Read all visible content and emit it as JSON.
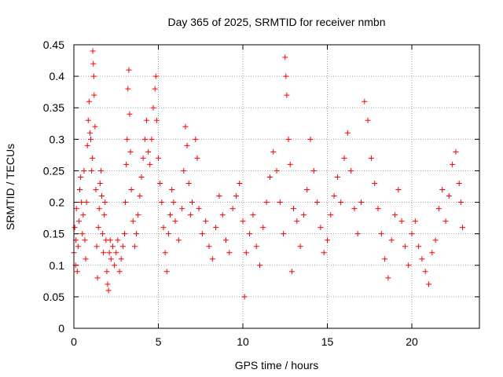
{
  "chart_data": {
    "type": "scatter",
    "title": "Day 365 of 2025, SRMTID for receiver nmbn",
    "xlabel": "GPS time / hours",
    "ylabel": "SRMTID / TECUs",
    "xlim": [
      0,
      24
    ],
    "ylim": [
      0,
      0.45
    ],
    "xticks": [
      0,
      5,
      10,
      15,
      20
    ],
    "xtick_labels": [
      "0",
      "5",
      "10",
      "15",
      "20"
    ],
    "yticks": [
      0,
      0.05,
      0.1,
      0.15,
      0.2,
      0.25,
      0.3,
      0.35,
      0.4,
      0.45
    ],
    "ytick_labels": [
      "0",
      "0.05",
      "0.1",
      "0.15",
      "0.2",
      "0.25",
      "0.3",
      "0.35",
      "0.4",
      "0.45"
    ],
    "grid": true,
    "marker": "plus",
    "color": "#ff0000",
    "series": [
      {
        "name": "SRMTID",
        "points": [
          [
            0.0,
            0.12
          ],
          [
            0.05,
            0.16
          ],
          [
            0.1,
            0.1
          ],
          [
            0.12,
            0.14
          ],
          [
            0.15,
            0.19
          ],
          [
            0.2,
            0.09
          ],
          [
            0.25,
            0.13
          ],
          [
            0.3,
            0.17
          ],
          [
            0.35,
            0.22
          ],
          [
            0.4,
            0.24
          ],
          [
            0.45,
            0.2
          ],
          [
            0.5,
            0.15
          ],
          [
            0.55,
            0.18
          ],
          [
            0.6,
            0.25
          ],
          [
            0.65,
            0.14
          ],
          [
            0.7,
            0.11
          ],
          [
            0.75,
            0.2
          ],
          [
            0.8,
            0.29
          ],
          [
            0.85,
            0.33
          ],
          [
            0.9,
            0.36
          ],
          [
            0.95,
            0.31
          ],
          [
            1.0,
            0.3
          ],
          [
            1.05,
            0.25
          ],
          [
            1.1,
            0.27
          ],
          [
            1.12,
            0.44
          ],
          [
            1.15,
            0.42
          ],
          [
            1.18,
            0.4
          ],
          [
            1.2,
            0.37
          ],
          [
            1.25,
            0.32
          ],
          [
            1.3,
            0.22
          ],
          [
            1.35,
            0.13
          ],
          [
            1.4,
            0.08
          ],
          [
            1.45,
            0.16
          ],
          [
            1.5,
            0.19
          ],
          [
            1.55,
            0.23
          ],
          [
            1.6,
            0.25
          ],
          [
            1.65,
            0.21
          ],
          [
            1.7,
            0.15
          ],
          [
            1.75,
            0.12
          ],
          [
            1.8,
            0.18
          ],
          [
            1.85,
            0.2
          ],
          [
            1.9,
            0.14
          ],
          [
            1.95,
            0.09
          ],
          [
            2.0,
            0.07
          ],
          [
            2.05,
            0.06
          ],
          [
            2.1,
            0.12
          ],
          [
            2.15,
            0.14
          ],
          [
            2.2,
            0.11
          ],
          [
            2.3,
            0.13
          ],
          [
            2.4,
            0.1
          ],
          [
            2.5,
            0.12
          ],
          [
            2.6,
            0.14
          ],
          [
            2.7,
            0.09
          ],
          [
            2.8,
            0.11
          ],
          [
            2.9,
            0.13
          ],
          [
            3.0,
            0.15
          ],
          [
            3.05,
            0.2
          ],
          [
            3.1,
            0.26
          ],
          [
            3.15,
            0.3
          ],
          [
            3.2,
            0.38
          ],
          [
            3.25,
            0.41
          ],
          [
            3.3,
            0.34
          ],
          [
            3.35,
            0.28
          ],
          [
            3.4,
            0.22
          ],
          [
            3.5,
            0.17
          ],
          [
            3.6,
            0.13
          ],
          [
            3.7,
            0.15
          ],
          [
            3.8,
            0.18
          ],
          [
            3.9,
            0.21
          ],
          [
            4.0,
            0.24
          ],
          [
            4.1,
            0.27
          ],
          [
            4.2,
            0.3
          ],
          [
            4.3,
            0.33
          ],
          [
            4.4,
            0.28
          ],
          [
            4.5,
            0.26
          ],
          [
            4.6,
            0.3
          ],
          [
            4.7,
            0.35
          ],
          [
            4.8,
            0.38
          ],
          [
            4.85,
            0.4
          ],
          [
            4.9,
            0.33
          ],
          [
            5.0,
            0.27
          ],
          [
            5.1,
            0.23
          ],
          [
            5.2,
            0.2
          ],
          [
            5.3,
            0.16
          ],
          [
            5.4,
            0.12
          ],
          [
            5.5,
            0.09
          ],
          [
            5.6,
            0.15
          ],
          [
            5.7,
            0.18
          ],
          [
            5.8,
            0.22
          ],
          [
            5.9,
            0.2
          ],
          [
            6.0,
            0.17
          ],
          [
            6.2,
            0.14
          ],
          [
            6.4,
            0.19
          ],
          [
            6.5,
            0.25
          ],
          [
            6.6,
            0.32
          ],
          [
            6.7,
            0.29
          ],
          [
            6.8,
            0.23
          ],
          [
            6.9,
            0.18
          ],
          [
            7.0,
            0.2
          ],
          [
            7.2,
            0.3
          ],
          [
            7.3,
            0.27
          ],
          [
            7.4,
            0.19
          ],
          [
            7.6,
            0.15
          ],
          [
            7.8,
            0.17
          ],
          [
            8.0,
            0.13
          ],
          [
            8.2,
            0.11
          ],
          [
            8.4,
            0.16
          ],
          [
            8.6,
            0.21
          ],
          [
            8.8,
            0.18
          ],
          [
            9.0,
            0.14
          ],
          [
            9.2,
            0.12
          ],
          [
            9.4,
            0.19
          ],
          [
            9.6,
            0.21
          ],
          [
            9.8,
            0.23
          ],
          [
            10.0,
            0.17
          ],
          [
            10.1,
            0.05
          ],
          [
            10.2,
            0.12
          ],
          [
            10.4,
            0.15
          ],
          [
            10.6,
            0.18
          ],
          [
            10.8,
            0.13
          ],
          [
            11.0,
            0.1
          ],
          [
            11.2,
            0.16
          ],
          [
            11.4,
            0.2
          ],
          [
            11.6,
            0.24
          ],
          [
            11.8,
            0.28
          ],
          [
            12.0,
            0.25
          ],
          [
            12.2,
            0.2
          ],
          [
            12.4,
            0.15
          ],
          [
            12.5,
            0.43
          ],
          [
            12.55,
            0.4
          ],
          [
            12.6,
            0.37
          ],
          [
            12.7,
            0.3
          ],
          [
            12.8,
            0.26
          ],
          [
            12.9,
            0.09
          ],
          [
            13.0,
            0.19
          ],
          [
            13.2,
            0.17
          ],
          [
            13.4,
            0.13
          ],
          [
            13.6,
            0.18
          ],
          [
            13.8,
            0.22
          ],
          [
            14.0,
            0.3
          ],
          [
            14.2,
            0.25
          ],
          [
            14.4,
            0.2
          ],
          [
            14.6,
            0.16
          ],
          [
            14.8,
            0.12
          ],
          [
            15.0,
            0.14
          ],
          [
            15.2,
            0.18
          ],
          [
            15.4,
            0.21
          ],
          [
            15.6,
            0.24
          ],
          [
            15.8,
            0.2
          ],
          [
            16.0,
            0.27
          ],
          [
            16.2,
            0.31
          ],
          [
            16.4,
            0.25
          ],
          [
            16.6,
            0.19
          ],
          [
            16.8,
            0.15
          ],
          [
            17.0,
            0.2
          ],
          [
            17.2,
            0.36
          ],
          [
            17.4,
            0.33
          ],
          [
            17.6,
            0.27
          ],
          [
            17.8,
            0.23
          ],
          [
            18.0,
            0.19
          ],
          [
            18.2,
            0.15
          ],
          [
            18.4,
            0.11
          ],
          [
            18.6,
            0.08
          ],
          [
            18.8,
            0.14
          ],
          [
            19.0,
            0.18
          ],
          [
            19.2,
            0.22
          ],
          [
            19.4,
            0.17
          ],
          [
            19.6,
            0.13
          ],
          [
            19.8,
            0.1
          ],
          [
            20.0,
            0.15
          ],
          [
            20.2,
            0.17
          ],
          [
            20.4,
            0.13
          ],
          [
            20.6,
            0.11
          ],
          [
            20.8,
            0.09
          ],
          [
            21.0,
            0.07
          ],
          [
            21.2,
            0.12
          ],
          [
            21.4,
            0.14
          ],
          [
            21.6,
            0.19
          ],
          [
            21.8,
            0.22
          ],
          [
            22.0,
            0.17
          ],
          [
            22.2,
            0.21
          ],
          [
            22.4,
            0.26
          ],
          [
            22.6,
            0.28
          ],
          [
            22.8,
            0.23
          ],
          [
            22.9,
            0.2
          ],
          [
            23.0,
            0.16
          ]
        ]
      }
    ]
  }
}
